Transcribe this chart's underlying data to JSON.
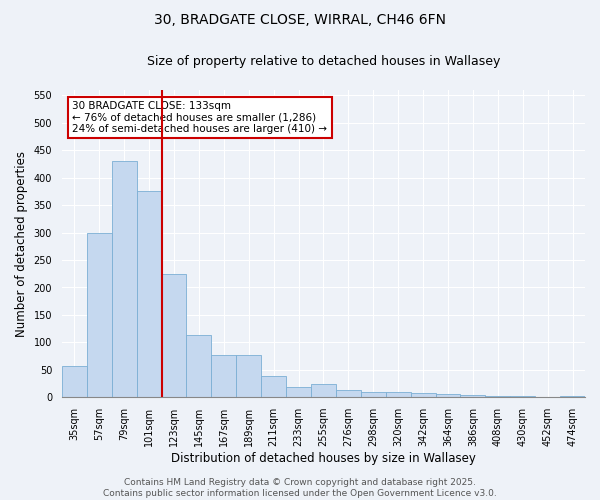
{
  "title_line1": "30, BRADGATE CLOSE, WIRRAL, CH46 6FN",
  "title_line2": "Size of property relative to detached houses in Wallasey",
  "xlabel": "Distribution of detached houses by size in Wallasey",
  "ylabel": "Number of detached properties",
  "categories": [
    "35sqm",
    "57sqm",
    "79sqm",
    "101sqm",
    "123sqm",
    "145sqm",
    "167sqm",
    "189sqm",
    "211sqm",
    "233sqm",
    "255sqm",
    "276sqm",
    "298sqm",
    "320sqm",
    "342sqm",
    "364sqm",
    "386sqm",
    "408sqm",
    "430sqm",
    "452sqm",
    "474sqm"
  ],
  "values": [
    57,
    300,
    430,
    375,
    225,
    113,
    77,
    77,
    38,
    18,
    25,
    13,
    9,
    9,
    7,
    6,
    4,
    3,
    3,
    1,
    3
  ],
  "bar_color": "#c5d8ef",
  "bar_edge_color": "#7bafd4",
  "vline_x_index": 3,
  "vline_color": "#cc0000",
  "annotation_text": "30 BRADGATE CLOSE: 133sqm\n← 76% of detached houses are smaller (1,286)\n24% of semi-detached houses are larger (410) →",
  "annotation_box_color": "#ffffff",
  "annotation_border_color": "#cc0000",
  "ylim": [
    0,
    560
  ],
  "yticks": [
    0,
    50,
    100,
    150,
    200,
    250,
    300,
    350,
    400,
    450,
    500,
    550
  ],
  "background_color": "#eef2f8",
  "grid_color": "#ffffff",
  "footer_text": "Contains HM Land Registry data © Crown copyright and database right 2025.\nContains public sector information licensed under the Open Government Licence v3.0.",
  "title_fontsize": 10,
  "subtitle_fontsize": 9,
  "axis_label_fontsize": 8.5,
  "tick_fontsize": 7,
  "footer_fontsize": 6.5,
  "annotation_fontsize": 7.5
}
